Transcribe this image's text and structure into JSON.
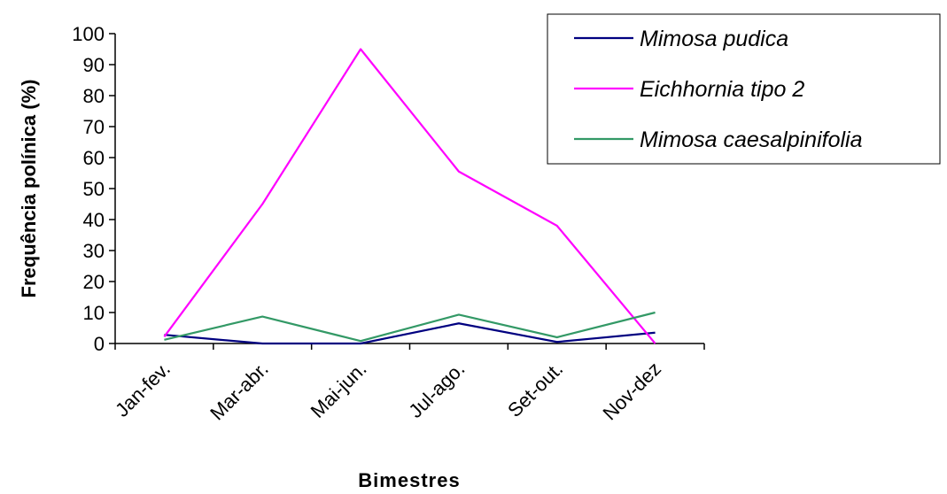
{
  "chart_data": {
    "type": "line",
    "xlabel": "Bimestres",
    "ylabel": "Frequência polínica (%)",
    "categories": [
      "Jan-fev.",
      "Mar-abr.",
      "Mai-jun.",
      "Jul-ago.",
      "Set-out.",
      "Nov-dez"
    ],
    "ylim": [
      0,
      100
    ],
    "yticks": [
      0,
      10,
      20,
      30,
      40,
      50,
      60,
      70,
      80,
      90,
      100
    ],
    "grid": false,
    "legend_position": "top-right",
    "series": [
      {
        "name": "Mimosa pudica",
        "color": "#000080",
        "values": [
          2.8,
          0,
          0,
          6.5,
          0.5,
          3.5
        ]
      },
      {
        "name": "Eichhornia tipo 2",
        "color": "#ff00ff",
        "values": [
          2.2,
          45,
          95,
          55.5,
          38,
          0
        ]
      },
      {
        "name": "Mimosa caesalpinifolia",
        "color": "#339966",
        "values": [
          1.2,
          8.7,
          0.8,
          9.3,
          2,
          10
        ]
      }
    ]
  }
}
